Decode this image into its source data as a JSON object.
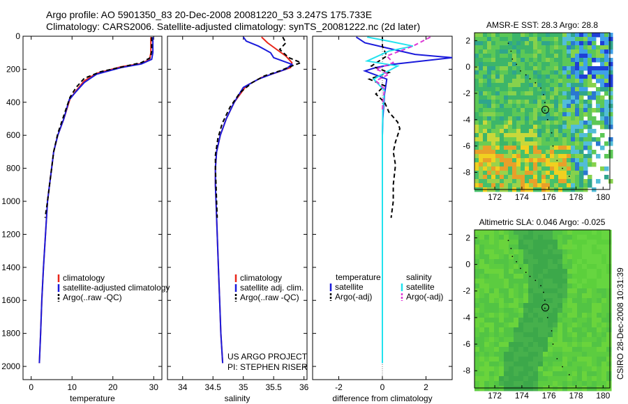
{
  "header": {
    "line1": "Argo profile: AO 5901350_83 20-Dec-2008 20081220_53 3.247S 175.733E",
    "line2": "Climatology: CARS2006. Satellite-adjusted climatology: synTS_20081222.nc (2d later)"
  },
  "colors": {
    "red": "#e8261a",
    "blue": "#1a1adb",
    "black": "#000000",
    "cyan": "#22e2ee",
    "magenta": "#dd3ad6"
  },
  "chart_data": [
    {
      "id": "temperature",
      "type": "line",
      "xlabel": "temperature",
      "xlim": [
        -2,
        32
      ],
      "ylim": [
        2080,
        0
      ],
      "xticks": [
        0,
        10,
        20,
        30
      ],
      "yticks": [
        0,
        200,
        400,
        600,
        800,
        1000,
        1200,
        1400,
        1600,
        1800,
        2000
      ],
      "legend": [
        "climatology",
        "satellite-adjusted climatology",
        "Argo(..raw -QC)"
      ],
      "series": [
        {
          "name": "climatology",
          "color": "red",
          "dash": false,
          "points": [
            [
              29.3,
              5
            ],
            [
              29.3,
              100
            ],
            [
              29.0,
              140
            ],
            [
              27,
              165
            ],
            [
              22,
              185
            ],
            [
              16,
              225
            ],
            [
              13,
              270
            ],
            [
              11,
              330
            ],
            [
              9.5,
              380
            ],
            [
              8,
              500
            ],
            [
              6.5,
              600
            ],
            [
              5.5,
              700
            ],
            [
              5,
              800
            ],
            [
              4.5,
              900
            ],
            [
              4.0,
              1000
            ],
            [
              3.5,
              1200
            ],
            [
              3.0,
              1400
            ],
            [
              2.6,
              1600
            ],
            [
              2.3,
              1800
            ],
            [
              2.0,
              1980
            ]
          ]
        },
        {
          "name": "satellite-adjusted climatology",
          "color": "blue",
          "dash": false,
          "points": [
            [
              29.8,
              5
            ],
            [
              29.8,
              100
            ],
            [
              29.5,
              140
            ],
            [
              27,
              168
            ],
            [
              22,
              190
            ],
            [
              16,
              230
            ],
            [
              13,
              280
            ],
            [
              11,
              335
            ],
            [
              9.3,
              385
            ],
            [
              8,
              500
            ],
            [
              6.5,
              600
            ],
            [
              5.5,
              700
            ],
            [
              5,
              800
            ],
            [
              4.5,
              900
            ],
            [
              4.0,
              1000
            ],
            [
              3.5,
              1200
            ],
            [
              3.0,
              1400
            ],
            [
              2.6,
              1600
            ],
            [
              2.3,
              1800
            ],
            [
              2.0,
              1980
            ]
          ]
        },
        {
          "name": "Argo(..raw -QC)",
          "color": "black",
          "dash": true,
          "points": [
            [
              29.5,
              5
            ],
            [
              29.5,
              90
            ],
            [
              29.2,
              130
            ],
            [
              27,
              160
            ],
            [
              23,
              182
            ],
            [
              17,
              215
            ],
            [
              13,
              255
            ],
            [
              11,
              310
            ],
            [
              9.5,
              370
            ],
            [
              8,
              480
            ],
            [
              6.5,
              590
            ],
            [
              5.5,
              700
            ],
            [
              5,
              800
            ],
            [
              4.5,
              900
            ],
            [
              4.0,
              1000
            ],
            [
              3.4,
              1100
            ]
          ]
        }
      ]
    },
    {
      "id": "salinity",
      "type": "line",
      "xlabel": "salinity",
      "xlim": [
        33.75,
        36.05
      ],
      "ylim": [
        2080,
        0
      ],
      "xticks": [
        34,
        34.5,
        35,
        35.5,
        36
      ],
      "legend": [
        "climatology",
        "satellite adj. clim.",
        "Argo(..raw -QC)"
      ],
      "series": [
        {
          "name": "climatology",
          "color": "red",
          "dash": false,
          "points": [
            [
              35.3,
              5
            ],
            [
              35.4,
              40
            ],
            [
              35.55,
              80
            ],
            [
              35.7,
              120
            ],
            [
              35.8,
              160
            ],
            [
              35.78,
              190
            ],
            [
              35.55,
              220
            ],
            [
              35.3,
              250
            ],
            [
              35.05,
              300
            ],
            [
              34.85,
              400
            ],
            [
              34.72,
              500
            ],
            [
              34.62,
              600
            ],
            [
              34.56,
              700
            ],
            [
              34.54,
              800
            ],
            [
              34.54,
              900
            ],
            [
              34.55,
              1000
            ],
            [
              34.57,
              1200
            ],
            [
              34.59,
              1400
            ],
            [
              34.61,
              1600
            ],
            [
              34.63,
              1800
            ],
            [
              34.66,
              1980
            ]
          ]
        },
        {
          "name": "satellite adj. clim.",
          "color": "blue",
          "dash": false,
          "points": [
            [
              35.0,
              5
            ],
            [
              35.05,
              30
            ],
            [
              35.25,
              60
            ],
            [
              35.45,
              100
            ],
            [
              35.5,
              130
            ],
            [
              35.8,
              170
            ],
            [
              35.7,
              200
            ],
            [
              35.5,
              225
            ],
            [
              35.25,
              260
            ],
            [
              35.0,
              310
            ],
            [
              34.85,
              400
            ],
            [
              34.72,
              500
            ],
            [
              34.62,
              600
            ],
            [
              34.56,
              700
            ],
            [
              34.54,
              800
            ],
            [
              34.54,
              900
            ],
            [
              34.55,
              1000
            ],
            [
              34.57,
              1200
            ],
            [
              34.59,
              1400
            ],
            [
              34.61,
              1600
            ],
            [
              34.63,
              1800
            ],
            [
              34.66,
              1980
            ]
          ]
        },
        {
          "name": "Argo(..raw -QC)",
          "color": "black",
          "dash": true,
          "points": [
            [
              35.65,
              5
            ],
            [
              35.7,
              40
            ],
            [
              35.6,
              80
            ],
            [
              35.75,
              130
            ],
            [
              35.95,
              160
            ],
            [
              35.8,
              180
            ],
            [
              35.6,
              210
            ],
            [
              35.35,
              240
            ],
            [
              35.15,
              280
            ],
            [
              34.95,
              340
            ],
            [
              34.78,
              430
            ],
            [
              34.65,
              530
            ],
            [
              34.58,
              620
            ],
            [
              34.54,
              720
            ],
            [
              34.54,
              800
            ],
            [
              34.55,
              900
            ],
            [
              34.56,
              1000
            ],
            [
              34.57,
              1100
            ]
          ]
        }
      ],
      "annotations": [
        "US ARGO PROJECT",
        "PI: STEPHEN RISER"
      ]
    },
    {
      "id": "difference",
      "type": "line",
      "xlabel": "difference from climatology",
      "xlim": [
        -3.2,
        3.2
      ],
      "ylim": [
        2080,
        0
      ],
      "xticks": [
        -2,
        0,
        2
      ],
      "legend_temperature": {
        "title": "temperature",
        "items": [
          "satellite",
          "Argo(-adj)"
        ]
      },
      "legend_salinity": {
        "title": "salinity",
        "items": [
          "satellite",
          "Argo(-adj)"
        ]
      },
      "series": [
        {
          "name": "temperature satellite",
          "color": "blue",
          "dash": false,
          "points": [
            [
              -1.2,
              5
            ],
            [
              -0.8,
              40
            ],
            [
              0.5,
              80
            ],
            [
              1.5,
              110
            ],
            [
              3.2,
              130
            ],
            [
              0.5,
              170
            ],
            [
              -0.3,
              190
            ],
            [
              -0.8,
              210
            ],
            [
              0.2,
              260
            ],
            [
              0.1,
              350
            ],
            [
              0.02,
              500
            ],
            [
              0,
              600
            ],
            [
              0,
              800
            ],
            [
              0,
              1000
            ],
            [
              0,
              1500
            ],
            [
              0,
              1980
            ]
          ]
        },
        {
          "name": "temperature Argo(-adj)",
          "color": "black",
          "dash": true,
          "points": [
            [
              0,
              5
            ],
            [
              0,
              60
            ],
            [
              0.2,
              120
            ],
            [
              -0.5,
              180
            ],
            [
              0.3,
              220
            ],
            [
              -0.6,
              260
            ],
            [
              0.1,
              300
            ],
            [
              -0.3,
              350
            ],
            [
              0.1,
              400
            ],
            [
              0.3,
              460
            ],
            [
              0.7,
              520
            ],
            [
              0.8,
              560
            ],
            [
              0.6,
              640
            ],
            [
              0.5,
              700
            ],
            [
              0.6,
              780
            ],
            [
              0.5,
              900
            ],
            [
              0.5,
              1000
            ],
            [
              0.4,
              1100
            ]
          ]
        },
        {
          "name": "salinity satellite",
          "color": "cyan",
          "dash": false,
          "points": [
            [
              -0.7,
              5
            ],
            [
              0.3,
              30
            ],
            [
              1.4,
              60
            ],
            [
              0.3,
              90
            ],
            [
              -0.7,
              150
            ],
            [
              0.7,
              180
            ],
            [
              0.2,
              215
            ],
            [
              -0.4,
              260
            ],
            [
              0.1,
              330
            ],
            [
              0.02,
              450
            ],
            [
              0,
              600
            ],
            [
              0,
              800
            ],
            [
              0,
              1000
            ],
            [
              0,
              1500
            ],
            [
              0,
              1980
            ]
          ]
        },
        {
          "name": "salinity Argo(-adj)",
          "color": "magenta",
          "dash": true,
          "points": [
            [
              2.2,
              5
            ],
            [
              1.4,
              60
            ],
            [
              0.2,
              120
            ],
            [
              0.5,
              160
            ],
            [
              -0.3,
              200
            ],
            [
              0.3,
              230
            ],
            [
              -0.3,
              270
            ],
            [
              0.1,
              320
            ],
            [
              0.02,
              400
            ],
            [
              0,
              450
            ]
          ]
        }
      ]
    },
    {
      "id": "sst_map",
      "type": "heatmap",
      "title": "AMSR-E SST: 28.3 Argo: 28.8",
      "xlim": [
        170.5,
        180.5
      ],
      "ylim": [
        -9.3,
        2.6
      ],
      "xticks": [
        172,
        174,
        176,
        178,
        180
      ],
      "yticks": [
        2,
        0,
        -2,
        -4,
        -6,
        -8
      ],
      "marker": [
        175.733,
        -3.247
      ]
    },
    {
      "id": "sla_map",
      "type": "heatmap",
      "title": "Altimetric SLA: 0.046 Argo: -0.025",
      "xlim": [
        170.5,
        180.5
      ],
      "ylim": [
        -9.3,
        2.6
      ],
      "xticks": [
        172,
        174,
        176,
        178,
        180
      ],
      "yticks": [
        2,
        0,
        -2,
        -4,
        -6,
        -8
      ],
      "marker": [
        175.733,
        -3.247
      ]
    }
  ],
  "footer": {
    "side_label": "CSIRO 28-Dec-2008 10:31:39"
  }
}
